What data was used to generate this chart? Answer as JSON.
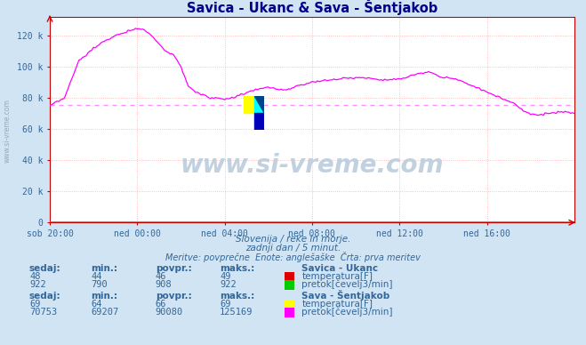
{
  "title": "Savica - Ukanc & Sava - Šentjakob",
  "bg_color": "#d0e4f4",
  "plot_bg_color": "#ffffff",
  "grid_color": "#ffaaaa",
  "axis_color": "#cc0000",
  "text_color": "#336699",
  "title_color": "#000088",
  "x_labels": [
    "sob 20:00",
    "ned 00:00",
    "ned 04:00",
    "ned 08:00",
    "ned 12:00",
    "ned 16:00"
  ],
  "x_ticks_pos": [
    0,
    24,
    48,
    72,
    96,
    120
  ],
  "y_ticks": [
    0,
    20000,
    40000,
    60000,
    80000,
    100000,
    120000
  ],
  "y_labels": [
    "0",
    "20 k",
    "40 k",
    "60 k",
    "80 k",
    "100 k",
    "120 k"
  ],
  "ylim": [
    0,
    132000
  ],
  "xlim": [
    0,
    144
  ],
  "avg_line_value": 75500,
  "line_color": "#ff00ff",
  "avg_line_color": "#ff88ff",
  "watermark_text": "www.si-vreme.com",
  "watermark_color": "#bbccdd",
  "subtitle1": "Slovenija / reke in morje.",
  "subtitle2": "zadnji dan / 5 minut.",
  "subtitle3": "Meritve: povprečne  Enote: anglešaške  Črta: prva meritev",
  "table1_header": "Savica - Ukanc",
  "table2_header": "Sava - Šentjakob",
  "col_headers": [
    "sedaj:",
    "min.:",
    "povpr.:",
    "maks.:"
  ],
  "savica_temp": [
    48,
    44,
    46,
    49
  ],
  "savica_flow": [
    922,
    790,
    908,
    922
  ],
  "sava_temp": [
    69,
    64,
    66,
    69
  ],
  "sava_flow": [
    70753,
    69207,
    90080,
    125169
  ],
  "color_red": "#dd0000",
  "color_green": "#00cc00",
  "color_yellow": "#ffff00",
  "color_magenta": "#ff00ff",
  "color_cyan": "#00ffff",
  "color_blue": "#0000cc",
  "flow_t": [
    0,
    4,
    8,
    12,
    16,
    20,
    24,
    26,
    28,
    30,
    32,
    34,
    36,
    38,
    40,
    42,
    44,
    46,
    48,
    50,
    52,
    54,
    56,
    58,
    60,
    62,
    64,
    66,
    68,
    70,
    72,
    74,
    76,
    78,
    80,
    82,
    84,
    86,
    88,
    90,
    92,
    94,
    96,
    98,
    100,
    102,
    104,
    106,
    108,
    110,
    112,
    114,
    116,
    118,
    120,
    122,
    124,
    126,
    128,
    130,
    132,
    134,
    136,
    138,
    140,
    142,
    144
  ],
  "flow_v": [
    75000,
    80000,
    104000,
    112000,
    118000,
    122000,
    125000,
    124000,
    120000,
    115000,
    110000,
    108000,
    100000,
    88000,
    84000,
    82000,
    80000,
    80000,
    79000,
    80000,
    82000,
    83000,
    85000,
    86000,
    87000,
    86000,
    85000,
    86000,
    88000,
    89000,
    90000,
    91000,
    91500,
    92000,
    92500,
    93000,
    93000,
    93000,
    93000,
    92000,
    92000,
    92000,
    92500,
    93000,
    95000,
    96000,
    97000,
    95000,
    93000,
    93000,
    92000,
    90000,
    88000,
    86000,
    84000,
    82000,
    80000,
    78000,
    76000,
    72000,
    70000,
    69000,
    70000,
    70500,
    71000,
    71000,
    70000
  ]
}
